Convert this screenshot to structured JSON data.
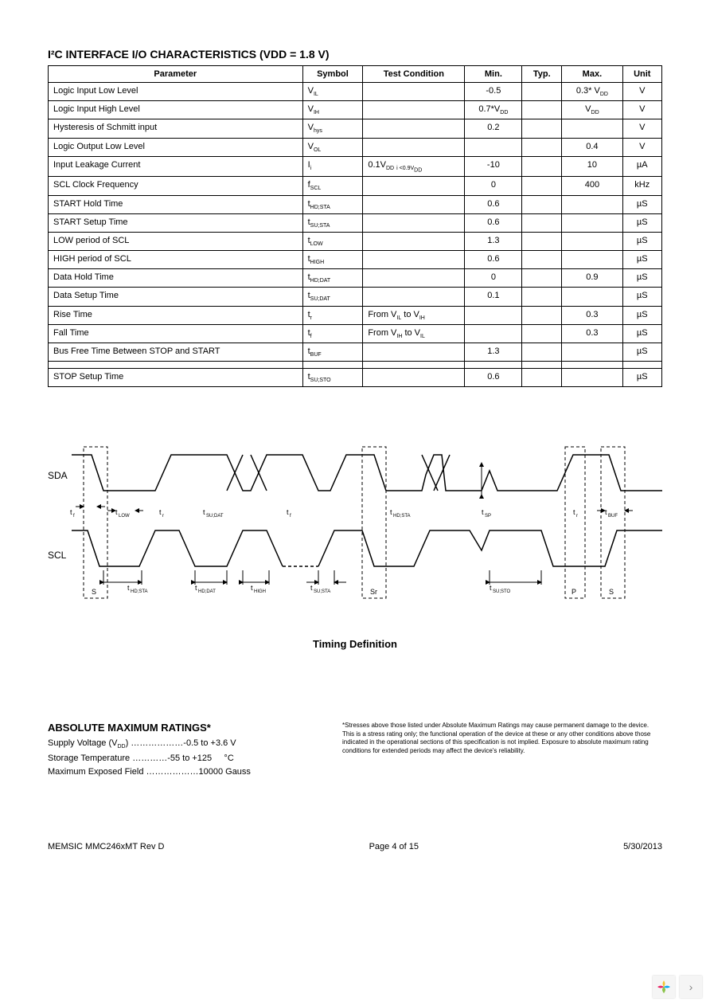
{
  "section_title": "I²C INTERFACE I/O CHARACTERISTICS (VDD = 1.8 V)",
  "table": {
    "headers": [
      "Parameter",
      "Symbol",
      "Test Condition",
      "Min.",
      "Typ.",
      "Max.",
      "Unit"
    ],
    "rows": [
      {
        "param": "Logic Input Low Level",
        "symbol": "V_IL",
        "cond": "",
        "min": "-0.5",
        "typ": "",
        "max": "0.3* V_DD",
        "unit": "V"
      },
      {
        "param": "Logic Input High Level",
        "symbol": "V_IH",
        "cond": "",
        "min": "0.7*V_DD",
        "typ": "",
        "max": "V_DD",
        "unit": "V"
      },
      {
        "param": "Hysteresis of Schmitt input",
        "symbol": "V_hys",
        "cond": "",
        "min": "0.2",
        "typ": "",
        "max": "",
        "unit": "V"
      },
      {
        "param": "Logic Output Low Level",
        "symbol": "V_OL",
        "cond": "",
        "min": "",
        "typ": "",
        "max": "0.4",
        "unit": "V"
      },
      {
        "param": "Input Leakage Current",
        "symbol": "I_i",
        "cond": "0.1V_DD <V_i <0.9V_DD",
        "min": "-10",
        "typ": "",
        "max": "10",
        "unit": "µA"
      },
      {
        "param": "SCL Clock Frequency",
        "symbol": "f_SCL",
        "cond": "",
        "min": "0",
        "typ": "",
        "max": "400",
        "unit": "kHz"
      },
      {
        "param": "START Hold Time",
        "symbol": "t_HD;STA",
        "cond": "",
        "min": "0.6",
        "typ": "",
        "max": "",
        "unit": "µS"
      },
      {
        "param": "START Setup Time",
        "symbol": "t_SU;STA",
        "cond": "",
        "min": "0.6",
        "typ": "",
        "max": "",
        "unit": "µS"
      },
      {
        "param": "LOW period of SCL",
        "symbol": "t_LOW",
        "cond": "",
        "min": "1.3",
        "typ": "",
        "max": "",
        "unit": "µS"
      },
      {
        "param": "HIGH period of SCL",
        "symbol": "t_HIGH",
        "cond": "",
        "min": "0.6",
        "typ": "",
        "max": "",
        "unit": "µS"
      },
      {
        "param": "Data Hold Time",
        "symbol": "t_HD;DAT",
        "cond": "",
        "min": "0",
        "typ": "",
        "max": "0.9",
        "unit": "µS"
      },
      {
        "param": "Data Setup Time",
        "symbol": "t_SU;DAT",
        "cond": "",
        "min": "0.1",
        "typ": "",
        "max": "",
        "unit": "µS"
      },
      {
        "param": "Rise Time",
        "symbol": "t_r",
        "cond": "From V_IL to V_IH",
        "min": "",
        "typ": "",
        "max": "0.3",
        "unit": "µS"
      },
      {
        "param": "Fall Time",
        "symbol": "t_f",
        "cond": "From V_IH to V_IL",
        "min": "",
        "typ": "",
        "max": "0.3",
        "unit": "µS"
      },
      {
        "param": "Bus Free Time Between STOP and START",
        "symbol": "t_BUF",
        "cond": "",
        "min": "1.3",
        "typ": "",
        "max": "",
        "unit": "µS"
      },
      {
        "param": "",
        "symbol": "",
        "cond": "",
        "min": "",
        "typ": "",
        "max": "",
        "unit": ""
      },
      {
        "param": "STOP Setup Time",
        "symbol": "t_SU;STO",
        "cond": "",
        "min": "0.6",
        "typ": "",
        "max": "",
        "unit": "µS"
      }
    ]
  },
  "timing": {
    "sda_label": "SDA",
    "scl_label": "SCL",
    "caption": "Timing Definition",
    "labels": {
      "tf": "t_f",
      "tlow": "t_LOW",
      "tr": "t_r",
      "tsudat": "t_SU;DAT",
      "thdsta": "t_HD;STA",
      "thddat": "t_HD;DAT",
      "thigh": "t_HIGH",
      "tsusta": "t_SU;STA",
      "thdsta2": "t_HD;STA",
      "tsp": "t_SP",
      "tsusto": "t_SU;STO",
      "tbuf": "t_BUF",
      "s": "S",
      "sr": "Sr",
      "p": "P",
      "s2": "S"
    },
    "colors": {
      "stroke": "#000000",
      "dash": "#000000",
      "background": "#ffffff"
    },
    "line_width": 1.5
  },
  "ratings": {
    "title": "ABSOLUTE MAXIMUM RATINGS*",
    "rows": [
      {
        "label": "Supply Voltage (V_DD)",
        "dots": "………………",
        "value": "-0.5 to +3.6 V",
        "unit": ""
      },
      {
        "label": "Storage Temperature",
        "dots": "…………",
        "value": "-55 to +125",
        "unit": "°C"
      },
      {
        "label": "Maximum Exposed Field",
        "dots": "………………",
        "value": "10000 Gauss",
        "unit": ""
      }
    ],
    "note": "*Stresses above those listed under Absolute Maximum Ratings may cause permanent damage to the device. This is a stress rating only; the functional operation of the device at these or any other conditions above those indicated in the operational sections of this specification is not implied. Exposure to absolute maximum rating conditions for extended periods may affect the device's reliability."
  },
  "footer": {
    "left": "MEMSIC MMC246xMT Rev D",
    "center": "Page 4 of 15",
    "right": "5/30/2013"
  }
}
